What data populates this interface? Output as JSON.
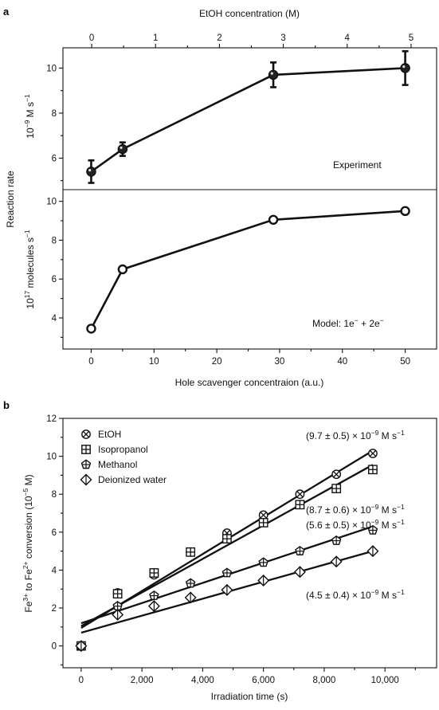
{
  "panel_a": {
    "label": "a",
    "top_axis_label": "EtOH concentration (M)",
    "bottom_axis_label": "Hole scavenger concentraion (a.u.)",
    "y_axis_label_shared": "Reaction rate",
    "upper_ylabel": {
      "base": "10",
      "sup": "−9",
      "rest": " M s",
      "sup2": "−1"
    },
    "lower_ylabel": {
      "base": "10",
      "sup": "17",
      "rest": " molecules s",
      "sup2": "−1"
    },
    "upper_annotation": "Experiment",
    "lower_annotation": "Model: 1e",
    "lower_annotation_parts": [
      "Model: 1e",
      "−",
      " + 2e",
      "−"
    ]
  },
  "panel_b": {
    "label": "b",
    "xlabel": "Irradiation time (s)",
    "ylabel": {
      "a": "Fe",
      "a_sup": "3+",
      "b": " to Fe",
      "b_sup": "2+",
      "c": " conversion (10",
      "c_sup": "−5",
      "d": " M)"
    },
    "rate_labels": [
      {
        "pre": "(9.7 ± 0.5) × 10",
        "sup": "−9",
        "post": " M s",
        "sup2": "−1"
      },
      {
        "pre": "(8.7 ± 0.6) × 10",
        "sup": "−9",
        "post": " M s",
        "sup2": "−1"
      },
      {
        "pre": "(5.6 ± 0.5) × 10",
        "sup": "−9",
        "post": " M s",
        "sup2": "−1"
      },
      {
        "pre": "(4.5 ± 0.4) × 10",
        "sup": "−9",
        "post": " M s",
        "sup2": "−1"
      }
    ]
  },
  "chart_data": [
    {
      "type": "line",
      "panel": "a-upper",
      "xlabel_top": "EtOH concentration (M)",
      "ylabel": "Reaction rate",
      "xlim_top": [
        -0.45,
        5.4
      ],
      "xticks_top": [
        0,
        1,
        2,
        3,
        4,
        5
      ],
      "xlim": [
        -4.5,
        55
      ],
      "ylim": [
        4.6,
        10.9
      ],
      "yticks": [
        6,
        8,
        10
      ],
      "series": [
        {
          "name": "Experiment",
          "x": [
            0,
            5,
            29,
            50
          ],
          "y": [
            5.4,
            6.4,
            9.7,
            10.0
          ],
          "yerr": [
            0.5,
            0.3,
            0.55,
            0.75
          ],
          "marker": "filled-circle"
        }
      ]
    },
    {
      "type": "line",
      "panel": "a-lower",
      "xlabel": "Hole scavenger concentraion (a.u.)",
      "xlim": [
        -4.5,
        55
      ],
      "xticks": [
        0,
        10,
        20,
        30,
        40,
        50
      ],
      "ylim": [
        2.4,
        10.6
      ],
      "yticks": [
        4,
        6,
        8,
        10
      ],
      "series": [
        {
          "name": "Model: 1e− + 2e−",
          "x": [
            0,
            5,
            29,
            50
          ],
          "y": [
            3.45,
            6.5,
            9.05,
            9.5
          ],
          "marker": "open-circle"
        }
      ]
    },
    {
      "type": "scatter",
      "panel": "b",
      "xlabel": "Irradiation time (s)",
      "ylabel": "Fe3+ to Fe2+ conversion (10−5 M)",
      "xlim": [
        -600,
        11700
      ],
      "ylim": [
        -1.15,
        12
      ],
      "xticks": [
        0,
        2000,
        4000,
        6000,
        8000,
        10000
      ],
      "xtick_labels": [
        "0",
        "2,000",
        "4,000",
        "6,000",
        "8,000",
        "10,000"
      ],
      "yticks": [
        -1,
        0,
        1,
        2,
        3,
        4,
        5,
        6,
        7,
        8,
        9,
        10,
        11,
        12
      ],
      "ytick_labels": [
        "",
        "0",
        "",
        "2",
        "",
        "4",
        "",
        "6",
        "",
        "8",
        "",
        "10",
        "",
        "12"
      ],
      "legend": "top-left",
      "series": [
        {
          "name": "EtOH",
          "marker": "circle-x",
          "x": [
            0,
            1200,
            2400,
            3600,
            4800,
            6000,
            7200,
            8400,
            9600
          ],
          "y": [
            0,
            2.8,
            3.75,
            4.95,
            5.95,
            6.9,
            8.0,
            9.05,
            10.15
          ],
          "fit": {
            "x": [
              0,
              9600
            ],
            "y": [
              0.95,
              10.3
            ]
          }
        },
        {
          "name": "Isopropanol",
          "marker": "square-plus",
          "x": [
            0,
            1200,
            2400,
            3600,
            4800,
            6000,
            7200,
            8400,
            9600
          ],
          "y": [
            0,
            2.75,
            3.85,
            4.95,
            5.65,
            6.5,
            7.45,
            8.3,
            9.3
          ],
          "fit": {
            "x": [
              0,
              9600
            ],
            "y": [
              1.05,
              9.55
            ]
          }
        },
        {
          "name": "Methanol",
          "marker": "pentagon-cross",
          "x": [
            0,
            1200,
            2400,
            3600,
            4800,
            6000,
            7200,
            8400,
            9600
          ],
          "y": [
            0,
            2.1,
            2.65,
            3.3,
            3.85,
            4.4,
            5.0,
            5.55,
            6.1
          ],
          "fit": {
            "x": [
              0,
              9600
            ],
            "y": [
              1.2,
              6.3
            ]
          }
        },
        {
          "name": "Deionized water",
          "marker": "diamond",
          "x": [
            0,
            1200,
            2400,
            3600,
            4800,
            6000,
            7200,
            8400,
            9600
          ],
          "y": [
            0,
            1.65,
            2.1,
            2.55,
            2.95,
            3.45,
            3.9,
            4.45,
            5.0
          ],
          "fit": {
            "x": [
              0,
              9600
            ],
            "y": [
              0.7,
              5.0
            ]
          }
        }
      ]
    }
  ]
}
